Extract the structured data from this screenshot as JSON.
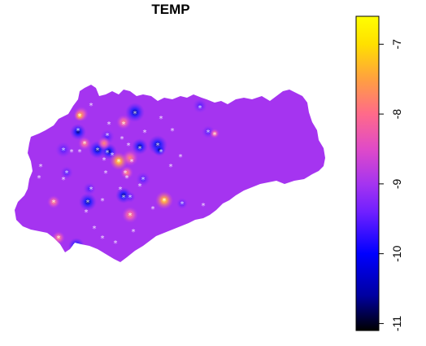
{
  "map": {
    "title": "TEMP",
    "colors": {
      "background": "#ffffff",
      "region_base": "#a534f0",
      "outline": "#000000"
    },
    "station_marker_symbol": "*"
  },
  "legend": {
    "ticks": [
      "-7",
      "-8",
      "-9",
      "-10",
      "-11"
    ],
    "tick_values": [
      -7,
      -8,
      -9,
      -10,
      -11
    ],
    "range": [
      -11.1,
      -6.6
    ],
    "orientation": "vertical",
    "position": "right",
    "gradient_stops": [
      {
        "value": -11.1,
        "color": "#000000"
      },
      {
        "value": -10.6,
        "color": "#0000a0"
      },
      {
        "value": -10.0,
        "color": "#0000ff"
      },
      {
        "value": -9.4,
        "color": "#7020ff"
      },
      {
        "value": -9.0,
        "color": "#a534f0"
      },
      {
        "value": -8.5,
        "color": "#e04ac8"
      },
      {
        "value": -8.0,
        "color": "#ff6a8a"
      },
      {
        "value": -7.5,
        "color": "#ffa040"
      },
      {
        "value": -7.0,
        "color": "#ffe000"
      },
      {
        "value": -6.6,
        "color": "#ffff00"
      }
    ]
  }
}
